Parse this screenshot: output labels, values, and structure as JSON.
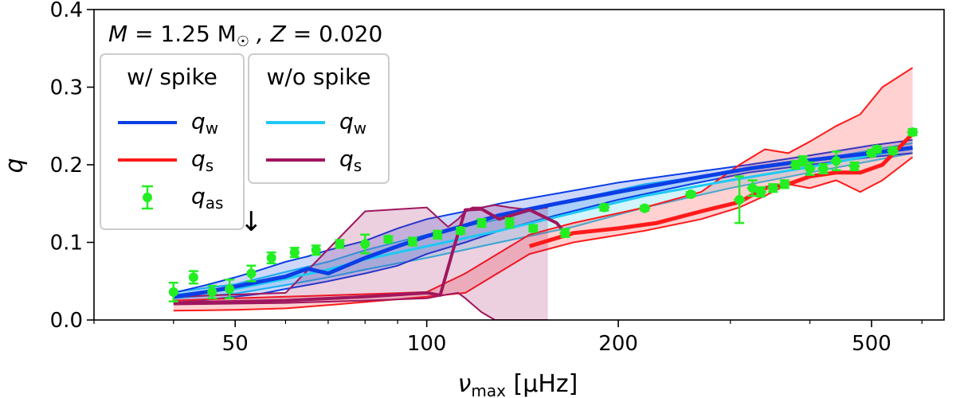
{
  "chart_data": {
    "type": "line",
    "xscale": "log",
    "xlim": [
      30,
      650
    ],
    "ylim": [
      0,
      0.4
    ],
    "xlabel": "ν_max [μHz]",
    "xlabel_main": "ν",
    "xlabel_sub": "max",
    "xlabel_unit": " [μHz]",
    "ylabel": "q",
    "title": "M = 1.25 M☉ , Z = 0.020",
    "title_parts": {
      "m": "M",
      "mass": " = 1.25 M",
      "sun": "☉",
      "z": " , Z",
      "zval": " = 0.020"
    },
    "xticks": [
      50,
      100,
      200,
      500
    ],
    "xtick_labels": [
      "50",
      "100",
      "200",
      "500"
    ],
    "yticks": [
      0.0,
      0.1,
      0.2,
      0.3,
      0.4
    ],
    "ytick_labels": [
      "0.0",
      "0.1",
      "0.2",
      "0.3",
      "0.4"
    ],
    "colors": {
      "qw_spike": "#0b3ee6",
      "qs_spike": "#ff1a1a",
      "qas": "#22ee22",
      "qw_nospike": "#1ec8f5",
      "qs_nospike": "#a0165e"
    },
    "legend_groups": [
      {
        "title": "w/ spike",
        "entries": [
          {
            "label": "q",
            "sub": "w",
            "kind": "line",
            "color": "#0b3ee6"
          },
          {
            "label": "q",
            "sub": "s",
            "kind": "line",
            "color": "#ff1a1a"
          },
          {
            "label": "q",
            "sub": "as",
            "kind": "errorbar",
            "color": "#22ee22"
          }
        ]
      },
      {
        "title": "w/o spike",
        "entries": [
          {
            "label": "q",
            "sub": "w",
            "kind": "line",
            "color": "#1ec8f5"
          },
          {
            "label": "q",
            "sub": "s",
            "kind": "line",
            "color": "#a0165e"
          }
        ]
      }
    ],
    "annotation": {
      "text": "↓",
      "x": 53,
      "y": 0.115,
      "description": "arrow marker"
    },
    "series": [
      {
        "name": "q_w (w/o spike) band",
        "kind": "band",
        "color": "#1ec8f5",
        "x": [
          40,
          50,
          60,
          70,
          80,
          100,
          130,
          170,
          220,
          300,
          400,
          580
        ],
        "lower": [
          0.028,
          0.034,
          0.045,
          0.055,
          0.065,
          0.08,
          0.1,
          0.12,
          0.145,
          0.17,
          0.19,
          0.215
        ],
        "upper": [
          0.036,
          0.046,
          0.062,
          0.075,
          0.09,
          0.11,
          0.13,
          0.155,
          0.175,
          0.19,
          0.205,
          0.228
        ]
      },
      {
        "name": "q_w (w/ spike) band",
        "kind": "band",
        "color": "#0b3ee6",
        "x": [
          40,
          45,
          50,
          55,
          60,
          65,
          70,
          80,
          90,
          100,
          115,
          130,
          160,
          200,
          260,
          320,
          400,
          500,
          580
        ],
        "lower": [
          0.022,
          0.026,
          0.03,
          0.034,
          0.04,
          0.045,
          0.05,
          0.06,
          0.07,
          0.085,
          0.1,
          0.115,
          0.135,
          0.155,
          0.175,
          0.19,
          0.2,
          0.21,
          0.215
        ],
        "upper": [
          0.035,
          0.045,
          0.055,
          0.065,
          0.075,
          0.082,
          0.09,
          0.102,
          0.118,
          0.13,
          0.14,
          0.15,
          0.163,
          0.177,
          0.19,
          0.2,
          0.212,
          0.225,
          0.232
        ]
      },
      {
        "name": "q_s (w/ spike) band",
        "kind": "band",
        "color": "#ff1a1a",
        "x": [
          40,
          50,
          60,
          72,
          85,
          100,
          115,
          145,
          170,
          220,
          270,
          310,
          340,
          370,
          400,
          440,
          480,
          520,
          580
        ],
        "lower": [
          0.012,
          0.013,
          0.015,
          0.02,
          0.025,
          0.03,
          0.035,
          0.085,
          0.1,
          0.115,
          0.13,
          0.145,
          0.16,
          0.175,
          0.17,
          0.18,
          0.165,
          0.18,
          0.21
        ],
        "upper": [
          0.025,
          0.028,
          0.03,
          0.032,
          0.034,
          0.036,
          0.06,
          0.11,
          0.125,
          0.145,
          0.165,
          0.2,
          0.22,
          0.215,
          0.23,
          0.25,
          0.265,
          0.3,
          0.325
        ]
      },
      {
        "name": "q_s (w/o spike) band",
        "kind": "band",
        "color": "#a0165e",
        "x": [
          40,
          60,
          80,
          100,
          108,
          112,
          115,
          118,
          122,
          128,
          135,
          145,
          155
        ],
        "lower": [
          0.02,
          0.022,
          0.025,
          0.028,
          0.033,
          0.035,
          0.028,
          0.02,
          0.01,
          0.0,
          0.0,
          0.0,
          0.0
        ],
        "upper": [
          0.03,
          0.035,
          0.14,
          0.145,
          0.12,
          0.13,
          0.14,
          0.145,
          0.145,
          0.148,
          0.145,
          0.142,
          0.145
        ]
      },
      {
        "name": "q_w (w/o spike)",
        "kind": "line",
        "color": "#1ec8f5",
        "width": 3,
        "x": [
          40,
          50,
          60,
          70,
          80,
          100,
          130,
          170,
          220,
          300,
          400,
          580
        ],
        "y": [
          0.032,
          0.04,
          0.053,
          0.065,
          0.078,
          0.095,
          0.115,
          0.138,
          0.16,
          0.18,
          0.197,
          0.222
        ]
      },
      {
        "name": "q_w (w/ spike)",
        "kind": "line",
        "color": "#0b3ee6",
        "width": 5,
        "x": [
          40,
          45,
          50,
          55,
          60,
          65,
          70,
          80,
          90,
          100,
          115,
          130,
          160,
          200,
          260,
          320,
          400,
          500,
          580
        ],
        "y": [
          0.03,
          0.036,
          0.043,
          0.05,
          0.056,
          0.066,
          0.06,
          0.08,
          0.095,
          0.108,
          0.122,
          0.135,
          0.15,
          0.165,
          0.182,
          0.195,
          0.206,
          0.215,
          0.222
        ]
      },
      {
        "name": "q_s (w/o spike)",
        "kind": "line",
        "color": "#a0165e",
        "width": 4,
        "x": [
          40,
          60,
          80,
          100,
          105,
          110,
          115,
          122,
          130,
          145,
          160,
          165
        ],
        "y": [
          0.022,
          0.025,
          0.03,
          0.035,
          0.032,
          0.09,
          0.142,
          0.143,
          0.13,
          0.142,
          0.125,
          0.112
        ]
      },
      {
        "name": "q_s (w/ spike)",
        "kind": "line",
        "color": "#ff1a1a",
        "width": 5,
        "x": [
          145,
          170,
          200,
          230,
          270,
          310,
          340,
          370,
          400,
          440,
          480,
          520,
          580
        ],
        "y": [
          0.095,
          0.112,
          0.118,
          0.125,
          0.14,
          0.152,
          0.17,
          0.175,
          0.185,
          0.19,
          0.19,
          0.2,
          0.24
        ]
      },
      {
        "name": "q_as",
        "kind": "errorbar",
        "color": "#22ee22",
        "x": [
          40,
          43,
          46,
          49,
          53,
          57,
          62,
          67,
          73,
          80,
          87,
          95,
          104,
          113,
          122,
          135,
          147,
          165,
          190,
          220,
          260,
          310,
          325,
          335,
          350,
          365,
          380,
          390,
          400,
          420,
          440,
          470,
          500,
          510,
          540,
          580
        ],
        "y": [
          0.036,
          0.055,
          0.036,
          0.04,
          0.06,
          0.08,
          0.087,
          0.09,
          0.098,
          0.098,
          0.104,
          0.101,
          0.11,
          0.115,
          0.125,
          0.125,
          0.118,
          0.112,
          0.145,
          0.144,
          0.162,
          0.155,
          0.17,
          0.165,
          0.17,
          0.175,
          0.2,
          0.205,
          0.195,
          0.195,
          0.205,
          0.198,
          0.215,
          0.22,
          0.218,
          0.242
        ],
        "err": [
          0.012,
          0.008,
          0.008,
          0.012,
          0.01,
          0.007,
          0.006,
          0.006,
          0.005,
          0.012,
          0.004,
          0.005,
          0.005,
          0.004,
          0.005,
          0.006,
          0.004,
          0.005,
          0.004,
          0.003,
          0.003,
          0.03,
          0.01,
          0.006,
          0.005,
          0.005,
          0.005,
          0.006,
          0.008,
          0.006,
          0.012,
          0.005,
          0.004,
          0.004,
          0.004,
          0.004
        ],
        "xerr_frac": [
          0.0,
          0.0,
          0.0,
          0.0,
          0.0,
          0.0,
          0.0,
          0.0,
          0.0,
          0.0,
          0.0,
          0.0,
          0.0,
          0.0,
          0.0,
          0.0,
          0.0,
          0.02,
          0.02,
          0.02,
          0.02,
          0.02,
          0.02,
          0.02,
          0.02,
          0.02,
          0.02,
          0.02,
          0.02,
          0.02,
          0.02,
          0.02,
          0.02,
          0.02,
          0.02,
          0.02
        ]
      }
    ]
  }
}
